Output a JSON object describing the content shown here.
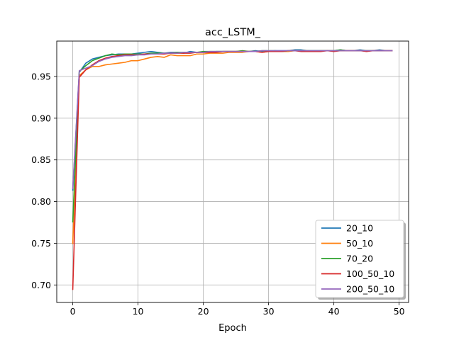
{
  "chart_data": {
    "type": "line",
    "title": "acc_LSTM_",
    "xlabel": "Epoch",
    "ylabel": "",
    "xlim": [
      -2.45,
      51.45
    ],
    "ylim": [
      0.679,
      0.9925
    ],
    "x_ticks": [
      0,
      10,
      20,
      30,
      40,
      50
    ],
    "x_tick_labels": [
      "0",
      "10",
      "20",
      "30",
      "40",
      "50"
    ],
    "y_ticks": [
      0.7,
      0.75,
      0.8,
      0.85,
      0.9,
      0.95
    ],
    "y_tick_labels": [
      "0.70",
      "0.75",
      "0.80",
      "0.85",
      "0.90",
      "0.95"
    ],
    "grid": true,
    "legend_position": "bottom-right",
    "x": [
      0,
      1,
      2,
      3,
      4,
      5,
      6,
      7,
      8,
      9,
      10,
      11,
      12,
      13,
      14,
      15,
      16,
      17,
      18,
      19,
      20,
      21,
      22,
      23,
      24,
      25,
      26,
      27,
      28,
      29,
      30,
      31,
      32,
      33,
      34,
      35,
      36,
      37,
      38,
      39,
      40,
      41,
      42,
      43,
      44,
      45,
      46,
      47,
      48,
      49
    ],
    "series": [
      {
        "name": "20_10",
        "color": "#1f77b4",
        "values": [
          0.813,
          0.955,
          0.966,
          0.971,
          0.973,
          0.975,
          0.976,
          0.977,
          0.977,
          0.977,
          0.978,
          0.979,
          0.98,
          0.979,
          0.978,
          0.979,
          0.979,
          0.978,
          0.98,
          0.979,
          0.979,
          0.979,
          0.98,
          0.98,
          0.98,
          0.98,
          0.98,
          0.98,
          0.981,
          0.98,
          0.98,
          0.981,
          0.981,
          0.981,
          0.982,
          0.982,
          0.981,
          0.981,
          0.981,
          0.981,
          0.981,
          0.982,
          0.981,
          0.981,
          0.982,
          0.981,
          0.981,
          0.982,
          0.981,
          0.981
        ]
      },
      {
        "name": "50_10",
        "color": "#ff7f0e",
        "values": [
          0.749,
          0.951,
          0.958,
          0.962,
          0.962,
          0.964,
          0.965,
          0.966,
          0.967,
          0.969,
          0.969,
          0.971,
          0.973,
          0.974,
          0.973,
          0.976,
          0.975,
          0.975,
          0.975,
          0.977,
          0.977,
          0.978,
          0.978,
          0.978,
          0.979,
          0.979,
          0.979,
          0.98,
          0.98,
          0.979,
          0.98,
          0.98,
          0.98,
          0.98,
          0.981,
          0.981,
          0.981,
          0.98,
          0.981,
          0.981,
          0.981,
          0.981,
          0.981,
          0.981,
          0.981,
          0.981,
          0.981,
          0.981,
          0.981,
          0.981
        ]
      },
      {
        "name": "70_20",
        "color": "#2ca02c",
        "values": [
          0.775,
          0.956,
          0.963,
          0.969,
          0.972,
          0.975,
          0.977,
          0.976,
          0.977,
          0.977,
          0.977,
          0.977,
          0.978,
          0.978,
          0.978,
          0.978,
          0.979,
          0.979,
          0.979,
          0.979,
          0.98,
          0.98,
          0.98,
          0.98,
          0.98,
          0.98,
          0.981,
          0.98,
          0.98,
          0.981,
          0.981,
          0.981,
          0.98,
          0.981,
          0.981,
          0.981,
          0.981,
          0.981,
          0.981,
          0.981,
          0.981,
          0.982,
          0.981,
          0.981,
          0.981,
          0.981,
          0.981,
          0.981,
          0.981,
          0.981
        ]
      },
      {
        "name": "100_50_10",
        "color": "#d62728",
        "values": [
          0.694,
          0.949,
          0.958,
          0.964,
          0.969,
          0.972,
          0.974,
          0.975,
          0.976,
          0.976,
          0.976,
          0.977,
          0.977,
          0.977,
          0.977,
          0.978,
          0.978,
          0.978,
          0.978,
          0.979,
          0.979,
          0.979,
          0.979,
          0.98,
          0.98,
          0.98,
          0.98,
          0.98,
          0.98,
          0.979,
          0.98,
          0.98,
          0.98,
          0.981,
          0.981,
          0.98,
          0.98,
          0.98,
          0.98,
          0.981,
          0.98,
          0.981,
          0.981,
          0.981,
          0.981,
          0.98,
          0.981,
          0.981,
          0.981,
          0.981
        ]
      },
      {
        "name": "200_50_10",
        "color": "#9467bd",
        "values": [
          0.815,
          0.957,
          0.96,
          0.963,
          0.968,
          0.971,
          0.973,
          0.974,
          0.975,
          0.975,
          0.976,
          0.976,
          0.977,
          0.977,
          0.978,
          0.978,
          0.978,
          0.979,
          0.979,
          0.979,
          0.979,
          0.98,
          0.98,
          0.98,
          0.98,
          0.98,
          0.98,
          0.98,
          0.98,
          0.981,
          0.981,
          0.981,
          0.981,
          0.981,
          0.981,
          0.981,
          0.981,
          0.981,
          0.981,
          0.981,
          0.981,
          0.981,
          0.981,
          0.981,
          0.981,
          0.981,
          0.981,
          0.981,
          0.981,
          0.981
        ]
      }
    ]
  }
}
